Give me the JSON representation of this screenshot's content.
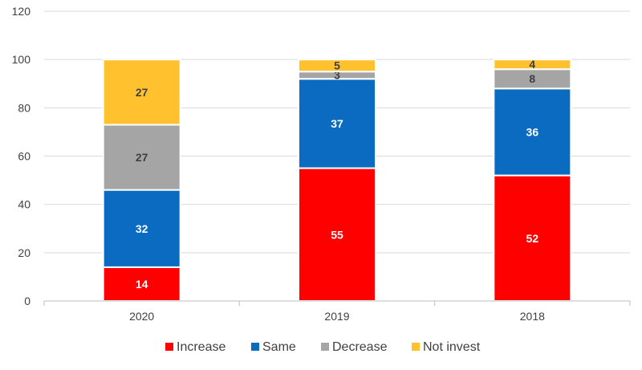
{
  "chart_data": {
    "type": "bar",
    "stacked": true,
    "categories": [
      "2020",
      "2019",
      "2018"
    ],
    "series": [
      {
        "name": "Increase",
        "color": "#FF0000",
        "label_color": "#FFFFFF",
        "values": [
          14,
          55,
          52
        ]
      },
      {
        "name": "Same",
        "color": "#0A6BC1",
        "label_color": "#FFFFFF",
        "values": [
          32,
          37,
          36
        ]
      },
      {
        "name": "Decrease",
        "color": "#A5A5A5",
        "label_color": "#404040",
        "values": [
          27,
          3,
          8
        ]
      },
      {
        "name": "Not invest",
        "color": "#FFC12E",
        "label_color": "#404040",
        "values": [
          27,
          5,
          4
        ]
      }
    ],
    "ylim": [
      0,
      120
    ],
    "yticks": [
      0,
      20,
      40,
      60,
      80,
      100,
      120
    ],
    "grid": true,
    "legend": "bottom",
    "title": "",
    "xlabel": "",
    "ylabel": ""
  }
}
